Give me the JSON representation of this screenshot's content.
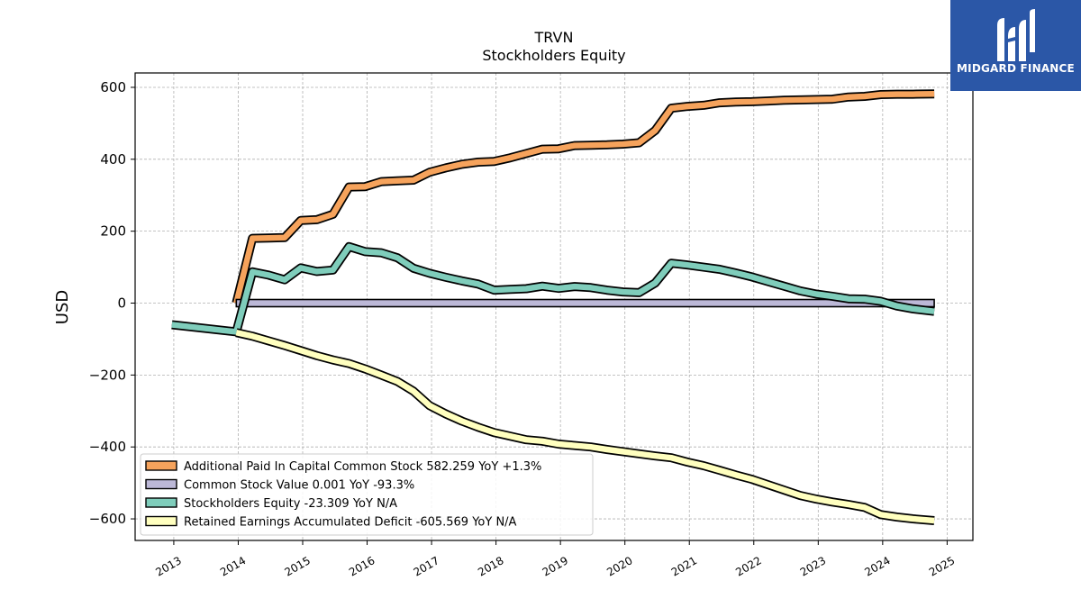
{
  "logo": {
    "text": "MIDGARD FINANCE",
    "background": "#2b57a7",
    "icon": "midgard-logo-icon"
  },
  "chart_data": {
    "type": "line",
    "title": "TRVN",
    "subtitle": "Stockholders  Equity",
    "ylabel": "USD",
    "xlabel": "",
    "xlim": [
      2012.4,
      2025.4
    ],
    "ylim": [
      -660,
      640
    ],
    "yticks": [
      -600,
      -400,
      -200,
      0,
      200,
      400,
      600
    ],
    "ytick_labels": [
      "−600",
      "−400",
      "−200",
      "0",
      "200",
      "400",
      "600"
    ],
    "xticks": [
      2013,
      2014,
      2015,
      2016,
      2017,
      2018,
      2019,
      2020,
      2021,
      2022,
      2023,
      2024,
      2025
    ],
    "xtick_labels": [
      "2013",
      "2014",
      "2015",
      "2016",
      "2017",
      "2018",
      "2019",
      "2020",
      "2021",
      "2022",
      "2023",
      "2024",
      "2025"
    ],
    "grid": true,
    "legend_position": "lower-left",
    "series": [
      {
        "name": "Additional Paid In Capital Common Stock",
        "legend": "Additional Paid In Capital Common Stock  582.259 YoY +1.3%",
        "color": "#f6a35c",
        "x": [
          2013.97,
          2014.22,
          2014.47,
          2014.72,
          2014.97,
          2015.22,
          2015.47,
          2015.72,
          2015.97,
          2016.22,
          2016.47,
          2016.72,
          2016.97,
          2017.22,
          2017.47,
          2017.72,
          2017.97,
          2018.22,
          2018.47,
          2018.72,
          2018.97,
          2019.22,
          2019.47,
          2019.72,
          2019.97,
          2020.22,
          2020.47,
          2020.72,
          2020.97,
          2021.22,
          2021.47,
          2021.72,
          2021.97,
          2022.22,
          2022.47,
          2022.72,
          2022.97,
          2023.22,
          2023.47,
          2023.72,
          2023.97,
          2024.22,
          2024.47,
          2024.8
        ],
        "y": [
          0,
          180,
          181,
          182,
          230,
          232,
          247,
          323,
          324,
          338,
          340,
          342,
          364,
          376,
          386,
          392,
          394,
          404,
          416,
          428,
          429,
          438,
          439,
          440,
          442,
          446,
          480,
          542,
          547,
          550,
          557,
          559,
          560,
          562,
          564,
          565,
          566,
          567,
          573,
          575,
          580,
          581,
          581,
          582
        ]
      },
      {
        "name": "Common Stock Value",
        "legend": "Common Stock Value  0.001 YoY -93.3%",
        "color": "#bcb8d7",
        "x": [
          2013.97,
          2024.8
        ],
        "y": [
          0.01,
          0.001
        ]
      },
      {
        "name": "Stockholders Equity",
        "legend": "Stockholders Equity  -23.309 YoY N/A",
        "color": "#7fcdbb",
        "x": [
          2012.97,
          2013.97,
          2014.22,
          2014.47,
          2014.72,
          2014.97,
          2015.22,
          2015.47,
          2015.72,
          2015.97,
          2016.22,
          2016.47,
          2016.72,
          2016.97,
          2017.22,
          2017.47,
          2017.72,
          2017.97,
          2018.22,
          2018.47,
          2018.72,
          2018.97,
          2019.22,
          2019.47,
          2019.72,
          2019.97,
          2020.22,
          2020.47,
          2020.72,
          2020.97,
          2021.22,
          2021.47,
          2021.72,
          2021.97,
          2022.22,
          2022.47,
          2022.72,
          2022.97,
          2023.22,
          2023.47,
          2023.72,
          2023.97,
          2024.22,
          2024.47,
          2024.8
        ],
        "y": [
          -60,
          -80,
          87,
          78,
          65,
          98,
          88,
          92,
          157,
          143,
          140,
          126,
          97,
          83,
          72,
          62,
          53,
          36,
          38,
          40,
          47,
          41,
          46,
          43,
          36,
          31,
          29,
          56,
          111,
          106,
          100,
          94,
          84,
          73,
          60,
          47,
          34,
          25,
          19,
          12,
          11,
          5,
          -8,
          -16,
          -23
        ]
      },
      {
        "name": "Retained Earnings Accumulated Deficit",
        "legend": "Retained Earnings Accumulated Deficit  -605.569 YoY N/A",
        "color": "#ffffbf",
        "x": [
          2013.97,
          2014.22,
          2014.47,
          2014.72,
          2014.97,
          2015.22,
          2015.47,
          2015.72,
          2015.97,
          2016.22,
          2016.47,
          2016.72,
          2016.97,
          2017.22,
          2017.47,
          2017.72,
          2017.97,
          2018.22,
          2018.47,
          2018.72,
          2018.97,
          2019.22,
          2019.47,
          2019.72,
          2019.97,
          2020.22,
          2020.47,
          2020.72,
          2020.97,
          2021.22,
          2021.47,
          2021.72,
          2021.97,
          2022.22,
          2022.47,
          2022.72,
          2022.97,
          2023.22,
          2023.47,
          2023.72,
          2023.97,
          2024.22,
          2024.47,
          2024.8
        ],
        "y": [
          -82,
          -92,
          -105,
          -118,
          -132,
          -146,
          -158,
          -168,
          -183,
          -200,
          -218,
          -245,
          -285,
          -308,
          -328,
          -345,
          -360,
          -370,
          -380,
          -384,
          -392,
          -396,
          -400,
          -407,
          -413,
          -419,
          -425,
          -430,
          -442,
          -452,
          -465,
          -478,
          -490,
          -505,
          -520,
          -535,
          -545,
          -553,
          -560,
          -568,
          -588,
          -595,
          -600,
          -605
        ]
      }
    ]
  }
}
